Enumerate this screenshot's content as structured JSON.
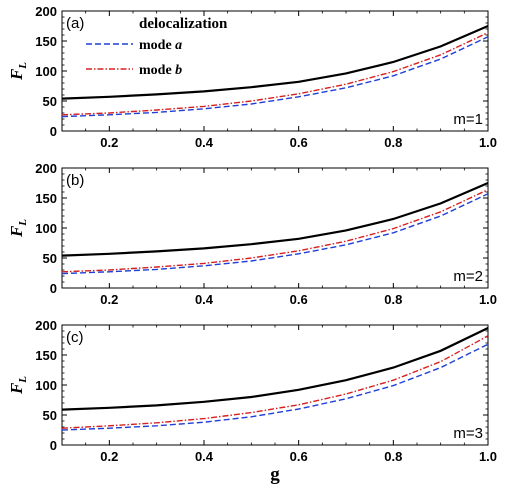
{
  "chart_data": [
    {
      "type": "line",
      "panel_label": "(a)",
      "m_label": "m=1",
      "ylabel": "F",
      "ylabel_sub": "L",
      "xlabel": "",
      "xlim": [
        0.1,
        1.0
      ],
      "ylim": [
        0,
        200
      ],
      "yticks": [
        0,
        50,
        100,
        150,
        200
      ],
      "xticks": [
        0.2,
        0.4,
        0.6,
        0.8,
        1.0
      ],
      "xtick_labels": [
        "0.2",
        "0.4",
        "0.6",
        "0.8",
        "1.0"
      ],
      "legend": {
        "title": "delocalization",
        "placement": "top-left",
        "entries": [
          {
            "label": "mode ",
            "label_em": "a",
            "series_index": 1
          },
          {
            "label": "mode ",
            "label_em": "b",
            "series_index": 2
          }
        ]
      },
      "x": [
        0.1,
        0.2,
        0.3,
        0.4,
        0.5,
        0.6,
        0.7,
        0.8,
        0.9,
        1.0
      ],
      "series": [
        {
          "values": [
            54,
            57,
            61,
            66,
            73,
            82,
            96,
            115,
            141,
            175
          ],
          "color": "#000000",
          "dash": "solid"
        },
        {
          "values": [
            24,
            27,
            31,
            37,
            45,
            57,
            72,
            92,
            120,
            157
          ],
          "color": "#1f3fd6",
          "dash": "dashed"
        },
        {
          "values": [
            27,
            30,
            35,
            41,
            50,
            62,
            78,
            99,
            127,
            164
          ],
          "color": "#d62020",
          "dash": "dashdot"
        }
      ]
    },
    {
      "type": "line",
      "panel_label": "(b)",
      "m_label": "m=2",
      "ylabel": "F",
      "ylabel_sub": "L",
      "xlabel": "",
      "xlim": [
        0.1,
        1.0
      ],
      "ylim": [
        0,
        200
      ],
      "yticks": [
        0,
        50,
        100,
        150,
        200
      ],
      "xticks": [
        0.2,
        0.4,
        0.6,
        0.8,
        1.0
      ],
      "xtick_labels": [
        "0.2",
        "0.4",
        "0.6",
        "0.8",
        "1.0"
      ],
      "x": [
        0.1,
        0.2,
        0.3,
        0.4,
        0.5,
        0.6,
        0.7,
        0.8,
        0.9,
        1.0
      ],
      "series": [
        {
          "values": [
            54,
            57,
            61,
            66,
            73,
            82,
            96,
            115,
            141,
            175
          ],
          "color": "#000000",
          "dash": "solid"
        },
        {
          "values": [
            24,
            27,
            31,
            37,
            45,
            57,
            72,
            92,
            120,
            157
          ],
          "color": "#1f3fd6",
          "dash": "dashed"
        },
        {
          "values": [
            27,
            30,
            35,
            41,
            50,
            62,
            78,
            99,
            127,
            164
          ],
          "color": "#d62020",
          "dash": "dashdot"
        }
      ]
    },
    {
      "type": "line",
      "panel_label": "(c)",
      "m_label": "m=3",
      "ylabel": "F",
      "ylabel_sub": "L",
      "xlabel": "g",
      "xlim": [
        0.1,
        1.0
      ],
      "ylim": [
        0,
        200
      ],
      "yticks": [
        0,
        50,
        100,
        150,
        200
      ],
      "xticks": [
        0.2,
        0.4,
        0.6,
        0.8,
        1.0
      ],
      "xtick_labels": [
        "0.2",
        "0.4",
        "0.6",
        "0.8",
        "1.0"
      ],
      "x": [
        0.1,
        0.2,
        0.3,
        0.4,
        0.5,
        0.6,
        0.7,
        0.8,
        0.9,
        1.0
      ],
      "series": [
        {
          "values": [
            59,
            62,
            66,
            72,
            80,
            92,
            108,
            129,
            157,
            195
          ],
          "color": "#000000",
          "dash": "solid"
        },
        {
          "values": [
            25,
            28,
            32,
            38,
            47,
            60,
            77,
            99,
            129,
            168
          ],
          "color": "#1f3fd6",
          "dash": "dashed"
        },
        {
          "values": [
            28,
            32,
            37,
            44,
            54,
            67,
            85,
            108,
            139,
            182
          ],
          "color": "#d62020",
          "dash": "dashdot"
        }
      ]
    }
  ]
}
